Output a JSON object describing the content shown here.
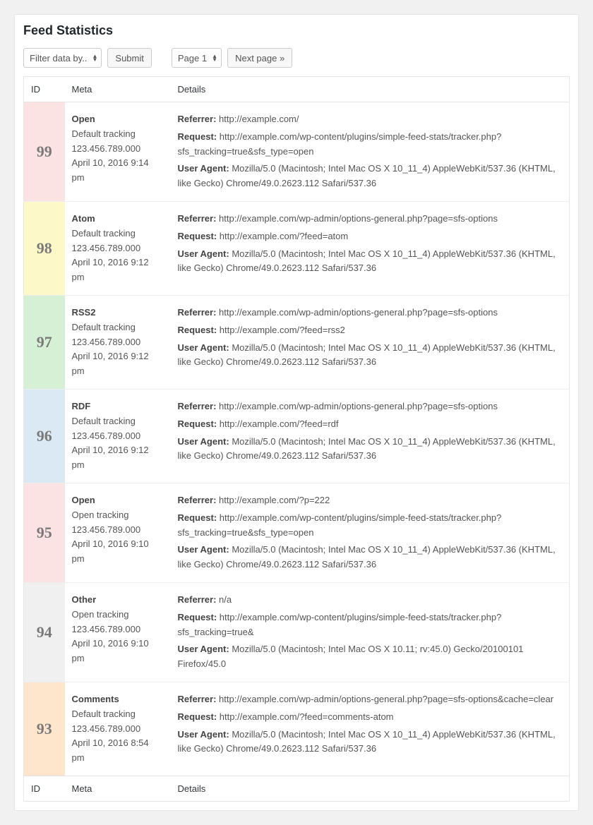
{
  "title": "Feed Statistics",
  "toolbar": {
    "filter_label": "Filter data by..",
    "submit_label": "Submit",
    "page_label": "Page 1",
    "next_label": "Next page »"
  },
  "columns": {
    "id": "ID",
    "meta": "Meta",
    "details": "Details"
  },
  "labels": {
    "referrer": "Referrer:",
    "request": "Request:",
    "user_agent": "User Agent:"
  },
  "colors": {
    "row_bg": {
      "open": "#fbe3e4",
      "atom": "#fcf8c7",
      "rss2": "#d6f0d6",
      "rdf": "#dbe9f4",
      "other": "#f0f0f0",
      "comments": "#fde6cc"
    },
    "id_text": "#7a7a7a"
  },
  "rows": [
    {
      "id": "99",
      "type_key": "open",
      "type": "Open",
      "tracking": "Default tracking",
      "ip": "123.456.789.000",
      "time": "April 10, 2016 9:14 pm",
      "referrer": "http://example.com/",
      "request": "http://example.com/wp-content/plugins/simple-feed-stats/tracker.php?sfs_tracking=true&sfs_type=open",
      "ua": "Mozilla/5.0 (Macintosh; Intel Mac OS X 10_11_4) AppleWebKit/537.36 (KHTML, like Gecko) Chrome/49.0.2623.112 Safari/537.36"
    },
    {
      "id": "98",
      "type_key": "atom",
      "type": "Atom",
      "tracking": "Default tracking",
      "ip": "123.456.789.000",
      "time": "April 10, 2016 9:12 pm",
      "referrer": "http://example.com/wp-admin/options-general.php?page=sfs-options",
      "request": "http://example.com/?feed=atom",
      "ua": "Mozilla/5.0 (Macintosh; Intel Mac OS X 10_11_4) AppleWebKit/537.36 (KHTML, like Gecko) Chrome/49.0.2623.112 Safari/537.36"
    },
    {
      "id": "97",
      "type_key": "rss2",
      "type": "RSS2",
      "tracking": "Default tracking",
      "ip": "123.456.789.000",
      "time": "April 10, 2016 9:12 pm",
      "referrer": "http://example.com/wp-admin/options-general.php?page=sfs-options",
      "request": "http://example.com/?feed=rss2",
      "ua": "Mozilla/5.0 (Macintosh; Intel Mac OS X 10_11_4) AppleWebKit/537.36 (KHTML, like Gecko) Chrome/49.0.2623.112 Safari/537.36"
    },
    {
      "id": "96",
      "type_key": "rdf",
      "type": "RDF",
      "tracking": "Default tracking",
      "ip": "123.456.789.000",
      "time": "April 10, 2016 9:12 pm",
      "referrer": "http://example.com/wp-admin/options-general.php?page=sfs-options",
      "request": "http://example.com/?feed=rdf",
      "ua": "Mozilla/5.0 (Macintosh; Intel Mac OS X 10_11_4) AppleWebKit/537.36 (KHTML, like Gecko) Chrome/49.0.2623.112 Safari/537.36"
    },
    {
      "id": "95",
      "type_key": "open",
      "type": "Open",
      "tracking": "Open tracking",
      "ip": "123.456.789.000",
      "time": "April 10, 2016 9:10 pm",
      "referrer": "http://example.com/?p=222",
      "request": "http://example.com/wp-content/plugins/simple-feed-stats/tracker.php?sfs_tracking=true&sfs_type=open",
      "ua": "Mozilla/5.0 (Macintosh; Intel Mac OS X 10_11_4) AppleWebKit/537.36 (KHTML, like Gecko) Chrome/49.0.2623.112 Safari/537.36"
    },
    {
      "id": "94",
      "type_key": "other",
      "type": "Other",
      "tracking": "Open tracking",
      "ip": "123.456.789.000",
      "time": "April 10, 2016 9:10 pm",
      "referrer": "n/a",
      "request": "http://example.com/wp-content/plugins/simple-feed-stats/tracker.php?sfs_tracking=true&",
      "ua": "Mozilla/5.0 (Macintosh; Intel Mac OS X 10.11; rv:45.0) Gecko/20100101 Firefox/45.0"
    },
    {
      "id": "93",
      "type_key": "comments",
      "type": "Comments",
      "tracking": "Default tracking",
      "ip": "123.456.789.000",
      "time": "April 10, 2016 8:54 pm",
      "referrer": "http://example.com/wp-admin/options-general.php?page=sfs-options&cache=clear",
      "request": "http://example.com/?feed=comments-atom",
      "ua": "Mozilla/5.0 (Macintosh; Intel Mac OS X 10_11_4) AppleWebKit/537.36 (KHTML, like Gecko) Chrome/49.0.2623.112 Safari/537.36"
    }
  ]
}
